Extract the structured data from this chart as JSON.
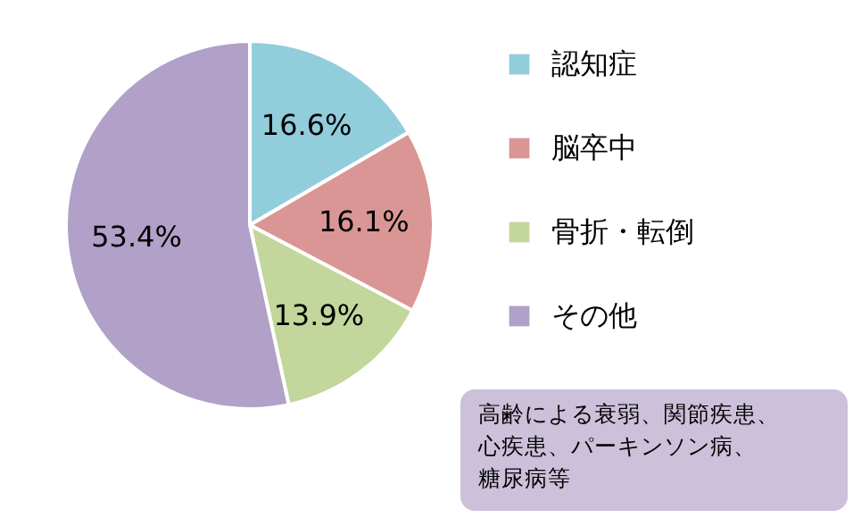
{
  "chart_data": {
    "type": "pie",
    "categories": [
      "認知症",
      "脳卒中",
      "骨折・転倒",
      "その他"
    ],
    "values": [
      16.6,
      16.1,
      13.9,
      53.4
    ],
    "value_labels": [
      "16.6%",
      "16.1%",
      "13.9%",
      "53.4%"
    ],
    "colors": [
      "#92cddc",
      "#da9694",
      "#c3d69b",
      "#b1a0c7"
    ],
    "legend": "right",
    "annotations": [
      "高齢による衰弱、関節疾患、心疾患、パーキンソン病、糖尿病等"
    ]
  }
}
